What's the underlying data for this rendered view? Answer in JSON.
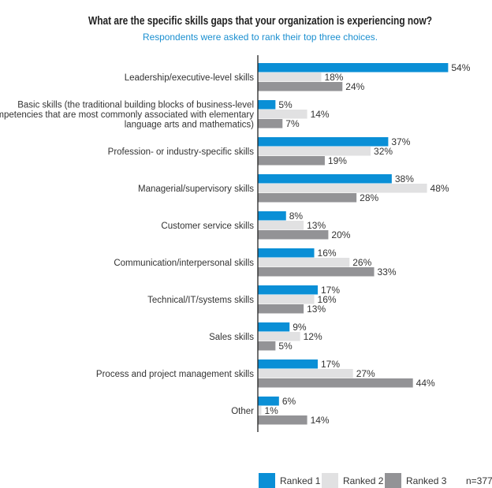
{
  "chart_data": {
    "type": "bar",
    "orientation": "horizontal",
    "title": "What are the specific skills gaps that your organization is experiencing now?",
    "subtitle": "Respondents were asked to rank their top three choices.",
    "categories": [
      [
        "Leadership/executive-level skills"
      ],
      [
        "Basic skills (the traditional building blocks of business-level",
        "competencies that are most commonly associated with elementary",
        "language arts and mathematics)"
      ],
      [
        "Profession- or industry-specific skills"
      ],
      [
        "Managerial/supervisory skills"
      ],
      [
        "Customer service skills"
      ],
      [
        "Communication/interpersonal skills"
      ],
      [
        "Technical/IT/systems skills"
      ],
      [
        "Sales skills"
      ],
      [
        "Process and project management skills"
      ],
      [
        "Other"
      ]
    ],
    "series": [
      {
        "name": "Ranked 1",
        "color": "#0a8fd6",
        "values": [
          54,
          5,
          37,
          38,
          8,
          16,
          17,
          9,
          17,
          6
        ]
      },
      {
        "name": "Ranked 2",
        "color": "#e1e1e2",
        "values": [
          18,
          14,
          32,
          48,
          13,
          26,
          16,
          12,
          27,
          1
        ]
      },
      {
        "name": "Ranked 3",
        "color": "#939396",
        "values": [
          24,
          7,
          19,
          28,
          20,
          33,
          13,
          5,
          44,
          14
        ]
      }
    ],
    "value_suffix": "%",
    "legend_position": "bottom",
    "note": "n=377",
    "grid": false
  }
}
